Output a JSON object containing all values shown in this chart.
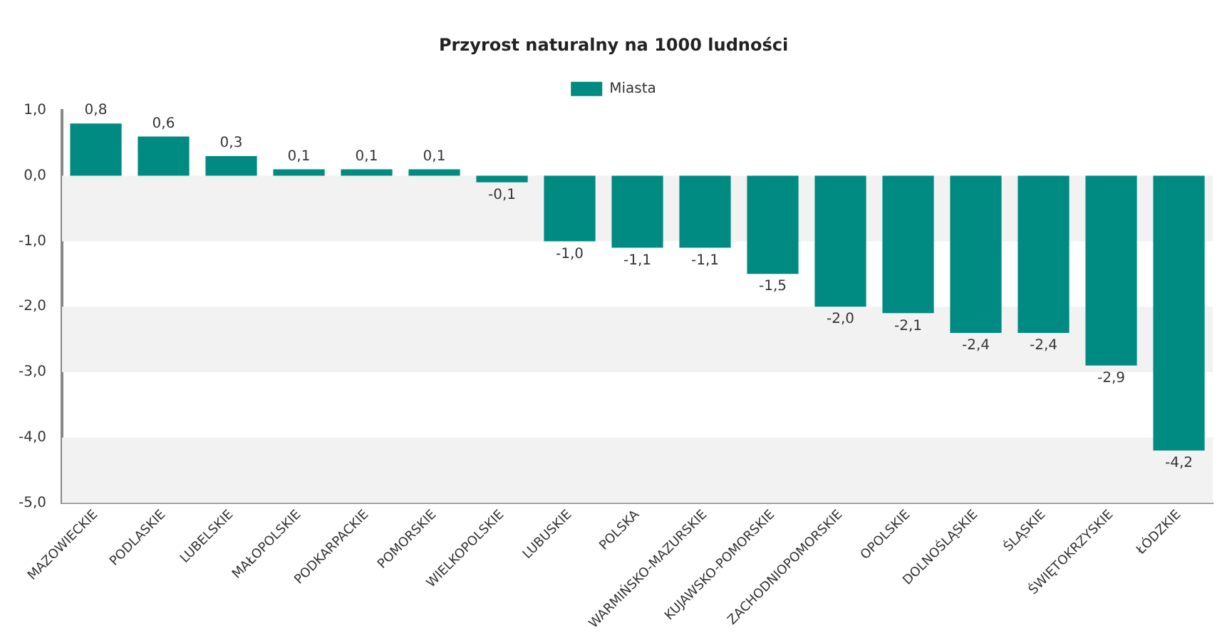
{
  "chart_data": {
    "type": "bar",
    "title": "Przyrost naturalny na 1000 ludności",
    "categories": [
      "MAZOWIECKIE",
      "PODLASKIE",
      "LUBELSKIE",
      "MAŁOPOLSKIE",
      "PODKARPACKIE",
      "POMORSKIE",
      "WIELKOPOLSKIE",
      "LUBUSKIE",
      "POLSKA",
      "WARMIŃSKO-MAZURSKIE",
      "KUJAWSKO-POMORSKIE",
      "ZACHODNIOPOMORSKIE",
      "OPOLSKIE",
      "DOLNOŚLĄSKIE",
      "ŚLĄSKIE",
      "ŚWIĘTOKRZYSKIE",
      "ŁÓDZKIE"
    ],
    "series": [
      {
        "name": "Miasta",
        "color": "#008b82",
        "values": [
          0.8,
          0.6,
          0.3,
          0.1,
          0.1,
          0.1,
          -0.1,
          -1.0,
          -1.1,
          -1.1,
          -1.5,
          -2.0,
          -2.1,
          -2.4,
          -2.4,
          -2.9,
          -4.2
        ],
        "value_labels": [
          "0,8",
          "0,6",
          "0,3",
          "0,1",
          "0,1",
          "0,1",
          "-0,1",
          "-1,0",
          "-1,1",
          "-1,1",
          "-1,5",
          "-2,0",
          "-2,1",
          "-2,4",
          "-2,4",
          "-2,9",
          "-4,2"
        ]
      }
    ],
    "ylim": [
      -5,
      1
    ],
    "yticks": [
      {
        "value": 1,
        "label": "1,0"
      },
      {
        "value": 0,
        "label": "0,0"
      },
      {
        "value": -1,
        "label": "-1,0"
      },
      {
        "value": -2,
        "label": "-2,0"
      },
      {
        "value": -3,
        "label": "-3,0"
      },
      {
        "value": -4,
        "label": "-4,0"
      },
      {
        "value": -5,
        "label": "-5,0"
      }
    ],
    "bands": [
      {
        "axis": "y",
        "from": 0,
        "to": -1,
        "color": "#f2f2f2"
      },
      {
        "axis": "y",
        "from": -2,
        "to": -3,
        "color": "#f2f2f2"
      },
      {
        "axis": "y",
        "from": -4,
        "to": -5,
        "color": "#f2f2f2"
      }
    ],
    "legend": "top",
    "grid": false
  }
}
